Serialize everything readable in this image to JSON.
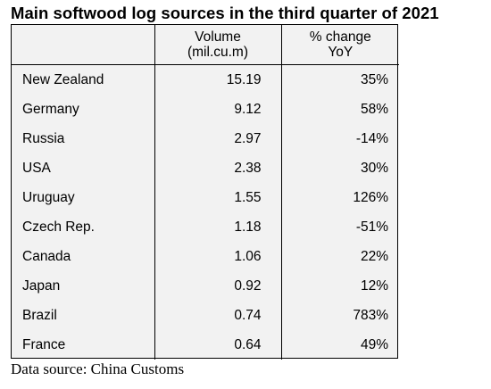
{
  "title": "Main softwood log sources in the third quarter of 2021",
  "columns": {
    "country": "",
    "volume_line1": "Volume",
    "volume_line2": "(mil.cu.m)",
    "change_line1": "% change",
    "change_line2": "YoY"
  },
  "rows": [
    {
      "country": "New Zealand",
      "volume": "15.19",
      "change": "35%"
    },
    {
      "country": "Germany",
      "volume": "9.12",
      "change": "58%"
    },
    {
      "country": "Russia",
      "volume": "2.97",
      "change": "-14%"
    },
    {
      "country": "USA",
      "volume": "2.38",
      "change": "30%"
    },
    {
      "country": "Uruguay",
      "volume": "1.55",
      "change": "126%"
    },
    {
      "country": "Czech Rep.",
      "volume": "1.18",
      "change": "-51%"
    },
    {
      "country": "Canada",
      "volume": "1.06",
      "change": "22%"
    },
    {
      "country": "Japan",
      "volume": "0.92",
      "change": "12%"
    },
    {
      "country": "Brazil",
      "volume": "0.74",
      "change": "783%"
    },
    {
      "country": "France",
      "volume": "0.64",
      "change": "49%"
    }
  ],
  "source": "Data source: China Customs",
  "colors": {
    "table_background": "#f2f2f2",
    "border": "#000000",
    "text": "#000000"
  }
}
